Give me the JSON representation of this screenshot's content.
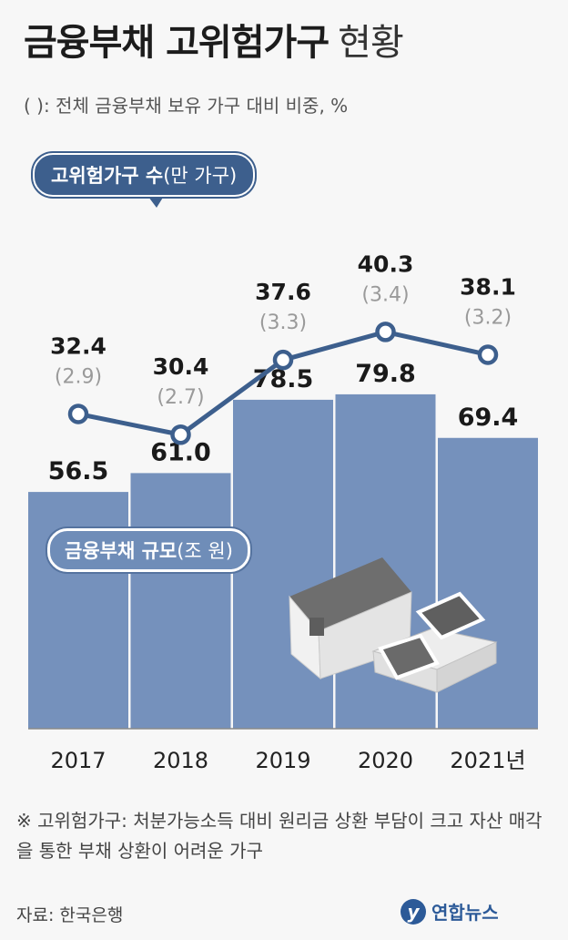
{
  "header": {
    "title_bold": "금융부채 고위험가구",
    "title_light": "현황",
    "subtitle": "( ): 전체 금융부채 보유 가구 대비 비중, %"
  },
  "line_label": {
    "main": "고위험가구 수",
    "unit": "(만 가구)"
  },
  "bar_label": {
    "main": "금융부채 규모",
    "unit": "(조 원)"
  },
  "chart_data": {
    "type": "bar",
    "categories": [
      "2017",
      "2018",
      "2019",
      "2020",
      "2021년"
    ],
    "series": [
      {
        "name": "금융부채 규모(조 원)",
        "type": "bar",
        "values": [
          56.5,
          61.0,
          78.5,
          79.8,
          69.4
        ],
        "labels": [
          "56.5",
          "61.0",
          "78.5",
          "79.8",
          "69.4"
        ]
      },
      {
        "name": "고위험가구 수(만 가구)",
        "type": "line",
        "values": [
          32.4,
          30.4,
          37.6,
          40.3,
          38.1
        ],
        "labels": [
          "32.4",
          "30.4",
          "37.6",
          "40.3",
          "38.1"
        ],
        "shares": [
          "(2.9)",
          "(2.7)",
          "(3.3)",
          "(3.4)",
          "(3.2)"
        ]
      }
    ],
    "colors": {
      "bar": "#7591bc",
      "line": "#3d5f8d",
      "marker_fill": "#ffffff"
    }
  },
  "footnote": "※ 고위험가구: 처분가능소득 대비 원리금 상환 부담이 크고 자산 매각을 통한 부채 상환이 어려운 가구",
  "source": "자료: 한국은행",
  "logo": {
    "mark": "y",
    "text": "연합뉴스"
  }
}
